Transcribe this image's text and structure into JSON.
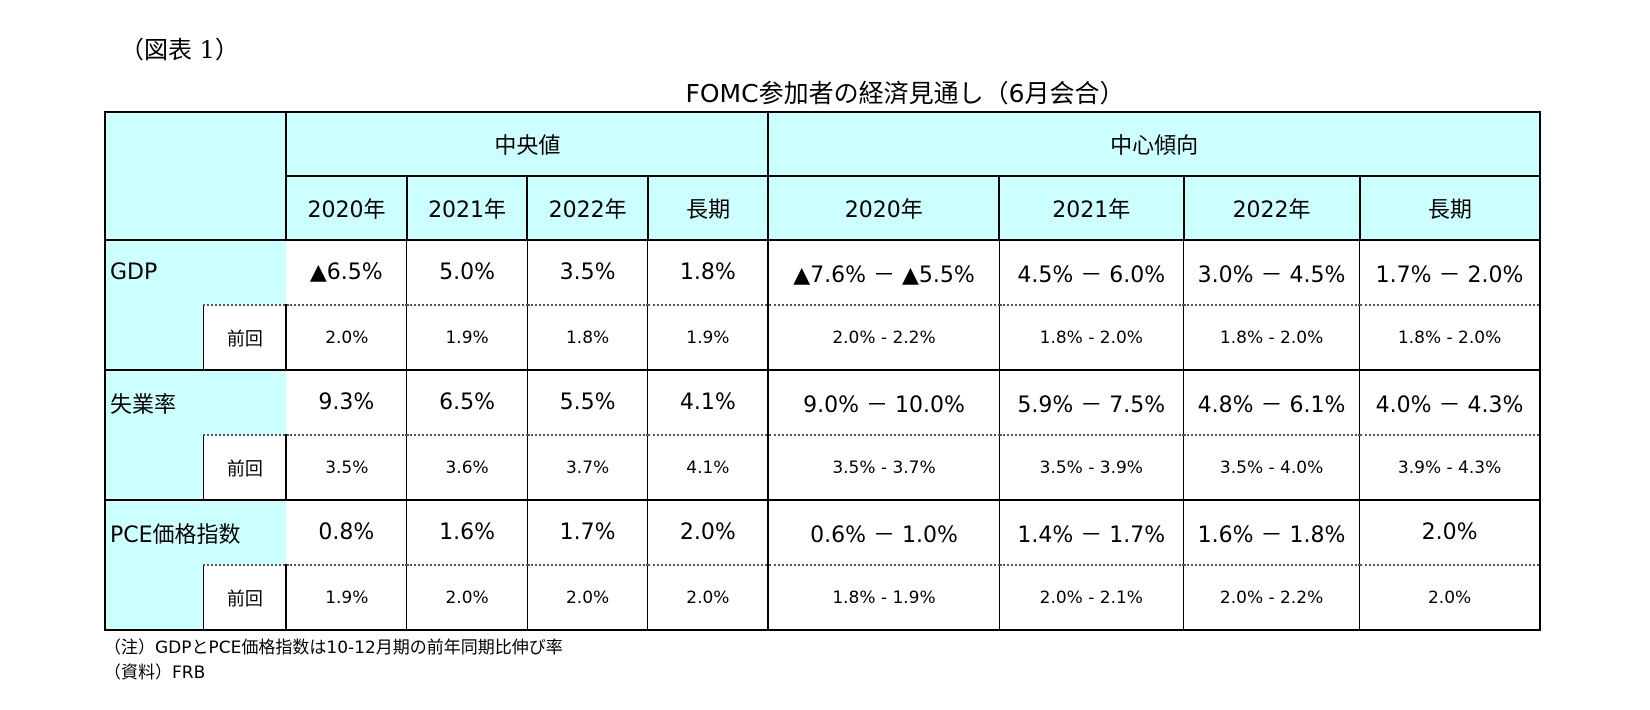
{
  "figure_label": "（図表 1）",
  "title": "FOMC参加者の経済見通し（6月会合）",
  "groups": [
    "中央値",
    "中心傾向"
  ],
  "years": [
    "2020年",
    "2021年",
    "2022年",
    "長期",
    "2020年",
    "2021年",
    "2022年",
    "長期"
  ],
  "prev_label": "前回",
  "rows": [
    {
      "label": "GDP",
      "values": [
        "▲6.5%",
        "5.0%",
        "3.5%",
        "1.8%",
        "▲7.6% － ▲5.5%",
        "4.5% － 6.0%",
        "3.0% － 4.5%",
        "1.7% － 2.0%"
      ],
      "prev": [
        "2.0%",
        "1.9%",
        "1.8%",
        "1.9%",
        "2.0% - 2.2%",
        "1.8% - 2.0%",
        "1.8% - 2.0%",
        "1.8% - 2.0%"
      ]
    },
    {
      "label": "失業率",
      "values": [
        "9.3%",
        "6.5%",
        "5.5%",
        "4.1%",
        "9.0% － 10.0%",
        "5.9% － 7.5%",
        "4.8% － 6.1%",
        "4.0% － 4.3%"
      ],
      "prev": [
        "3.5%",
        "3.6%",
        "3.7%",
        "4.1%",
        "3.5% - 3.7%",
        "3.5% - 3.9%",
        "3.5% - 4.0%",
        "3.9% - 4.3%"
      ]
    },
    {
      "label": "PCE価格指数",
      "values": [
        "0.8%",
        "1.6%",
        "1.7%",
        "2.0%",
        "0.6% － 1.0%",
        "1.4% － 1.7%",
        "1.6% － 1.8%",
        "2.0%"
      ],
      "prev": [
        "1.9%",
        "2.0%",
        "2.0%",
        "2.0%",
        "1.8% - 1.9%",
        "2.0% - 2.1%",
        "2.0% - 2.2%",
        "2.0%"
      ]
    }
  ],
  "notes": [
    "（注）GDPとPCE価格指数は10-12月期の前年同期比伸び率",
    "（資料）FRB"
  ]
}
